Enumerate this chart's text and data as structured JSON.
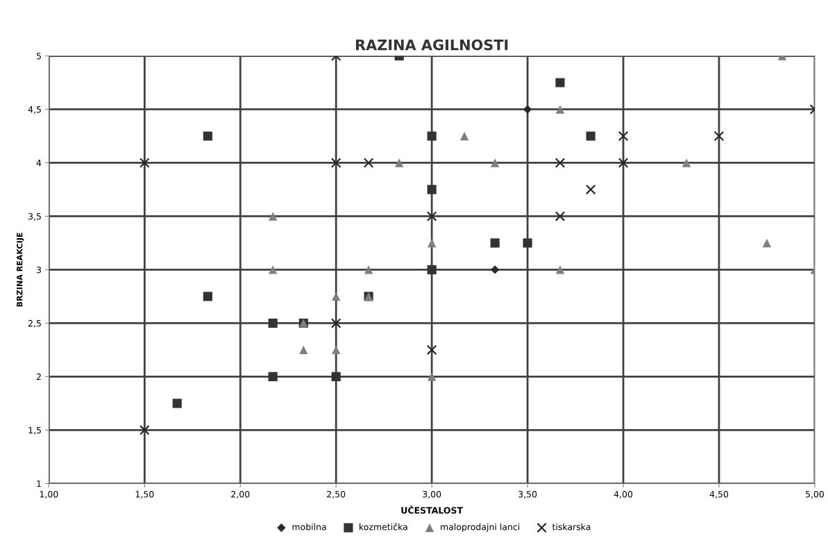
{
  "chart_data": {
    "type": "scatter",
    "title": "RAZINA AGILNOSTI",
    "xlabel": "UČESTALOST",
    "ylabel": "BRZINA REAKCIJE",
    "xlim": [
      1.0,
      5.0
    ],
    "ylim": [
      1,
      5
    ],
    "xticks": [
      {
        "value": 1.0,
        "label": "1,00"
      },
      {
        "value": 1.5,
        "label": "1,50"
      },
      {
        "value": 2.0,
        "label": "2,00"
      },
      {
        "value": 2.5,
        "label": "2,50"
      },
      {
        "value": 3.0,
        "label": "3,00"
      },
      {
        "value": 3.5,
        "label": "3,50"
      },
      {
        "value": 4.0,
        "label": "4,00"
      },
      {
        "value": 4.5,
        "label": "4,50"
      },
      {
        "value": 5.0,
        "label": "5,00"
      }
    ],
    "yticks": [
      1,
      {
        "value": 1.5,
        "label": "1,5"
      },
      2,
      {
        "value": 2.5,
        "label": "2,5"
      },
      3,
      {
        "value": 3.5,
        "label": "3,5"
      },
      4,
      {
        "value": 4.5,
        "label": "4,5"
      },
      5
    ],
    "grid": true,
    "legend": "bottom",
    "series": [
      {
        "name": "mobilna",
        "color": "#2b2b2b",
        "marker": "diamond",
        "x": [
          3.5,
          3.33
        ],
        "values": [
          4.5,
          3
        ]
      },
      {
        "name": "kozmetička",
        "color": "#333333",
        "marker": "square",
        "x": [
          2.83,
          3.67,
          1.83,
          3.0,
          3.83,
          3.0,
          3.33,
          3.5,
          3.0,
          1.83,
          2.67,
          2.17,
          2.33,
          2.17,
          2.5,
          1.67
        ],
        "values": [
          5,
          4.75,
          4.25,
          4.25,
          4.25,
          3.75,
          3.25,
          3.25,
          3,
          2.75,
          2.75,
          2.5,
          2.5,
          2,
          2,
          1.75
        ]
      },
      {
        "name": "maloprodajni lanci",
        "color": "#7f7f7f",
        "marker": "triangle",
        "x": [
          4.83,
          3.67,
          3.17,
          2.83,
          3.33,
          4.33,
          2.17,
          3.0,
          4.75,
          2.17,
          2.67,
          3.67,
          5.0,
          2.5,
          2.67,
          2.33,
          2.33,
          2.5,
          3.0
        ],
        "values": [
          5,
          4.5,
          4.25,
          4,
          4,
          4,
          3.5,
          3.25,
          3.25,
          3,
          3,
          3,
          3,
          2.75,
          2.75,
          2.5,
          2.25,
          2.25,
          2
        ]
      },
      {
        "name": "tiskarska",
        "color": "#262626",
        "marker": "cross",
        "x": [
          2.5,
          5.0,
          4.0,
          4.5,
          1.5,
          2.5,
          2.67,
          3.67,
          4.0,
          3.83,
          3.0,
          3.67,
          2.5,
          3.0,
          1.5
        ],
        "values": [
          5,
          4.5,
          4.25,
          4.25,
          4,
          4,
          4,
          4,
          4,
          3.75,
          3.5,
          3.5,
          2.5,
          2.25,
          1.5
        ]
      }
    ]
  }
}
